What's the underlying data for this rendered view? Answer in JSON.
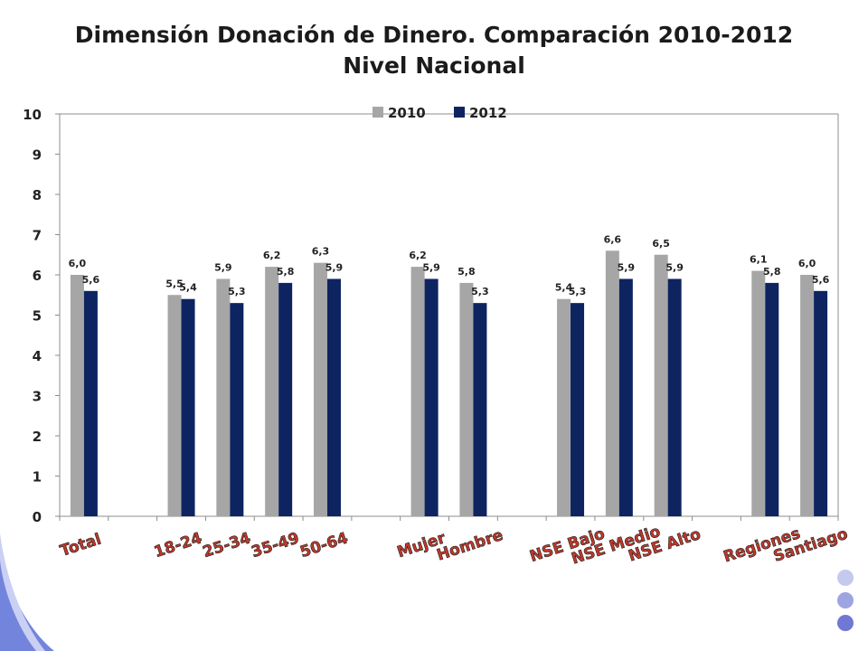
{
  "chart_data": {
    "type": "bar",
    "title": "Dimensión Donación de Dinero. Comparación 2010-2012",
    "subtitle": "Nivel Nacional",
    "categories": [
      "Total",
      "18-24",
      "25-34",
      "35-49",
      "50-64",
      "Mujer",
      "Hombre",
      "NSE Bajo",
      "NSE Medio",
      "NSE Alto",
      "Regiones",
      "Santiago"
    ],
    "slots": [
      0,
      2,
      3,
      4,
      5,
      7,
      8,
      10,
      11,
      12,
      14,
      15
    ],
    "slot_count": 16,
    "series": [
      {
        "name": "2010",
        "color": "#a6a6a6",
        "values": [
          6.0,
          5.5,
          5.9,
          6.2,
          6.3,
          6.2,
          5.8,
          5.4,
          6.6,
          6.5,
          6.1,
          6.0
        ],
        "labels": [
          "6,0",
          "5,5",
          "5,9",
          "6,2",
          "6,3",
          "6,2",
          "5,8",
          "5,4",
          "6,6",
          "6,5",
          "6,1",
          "6,0"
        ]
      },
      {
        "name": "2012",
        "color": "#0d2461",
        "values": [
          5.6,
          5.4,
          5.3,
          5.8,
          5.9,
          5.9,
          5.3,
          5.3,
          5.9,
          5.9,
          5.8,
          5.6
        ],
        "labels": [
          "5,6",
          "5,4",
          "5,3",
          "5,8",
          "5,9",
          "5,9",
          "5,3",
          "5,3",
          "5,9",
          "5,9",
          "5,8",
          "5,6"
        ]
      }
    ],
    "yticks": [
      "0",
      "1",
      "2",
      "3",
      "4",
      "5",
      "6",
      "7",
      "8",
      "9",
      "10"
    ],
    "ylim": [
      0,
      10
    ],
    "grid": false,
    "legend": "top-center"
  }
}
